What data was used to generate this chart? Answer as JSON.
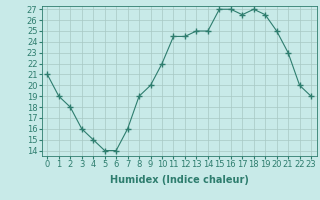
{
  "x": [
    0,
    1,
    2,
    3,
    4,
    5,
    6,
    7,
    8,
    9,
    10,
    11,
    12,
    13,
    14,
    15,
    16,
    17,
    18,
    19,
    20,
    21,
    22,
    23
  ],
  "y": [
    21,
    19,
    18,
    16,
    15,
    14,
    14,
    16,
    19,
    20,
    22,
    24.5,
    24.5,
    25,
    25,
    27,
    27,
    26.5,
    27,
    26.5,
    25,
    23,
    20,
    19
  ],
  "line_color": "#2e7d6e",
  "marker": "+",
  "marker_size": 4,
  "bg_color": "#c8eae8",
  "grid_color": "#a8c8c4",
  "xlabel": "Humidex (Indice chaleur)",
  "ylim": [
    14,
    27
  ],
  "xlim": [
    -0.5,
    23.5
  ],
  "yticks": [
    14,
    15,
    16,
    17,
    18,
    19,
    20,
    21,
    22,
    23,
    24,
    25,
    26,
    27
  ],
  "xticks": [
    0,
    1,
    2,
    3,
    4,
    5,
    6,
    7,
    8,
    9,
    10,
    11,
    12,
    13,
    14,
    15,
    16,
    17,
    18,
    19,
    20,
    21,
    22,
    23
  ],
  "tick_fontsize": 6,
  "xlabel_fontsize": 7
}
